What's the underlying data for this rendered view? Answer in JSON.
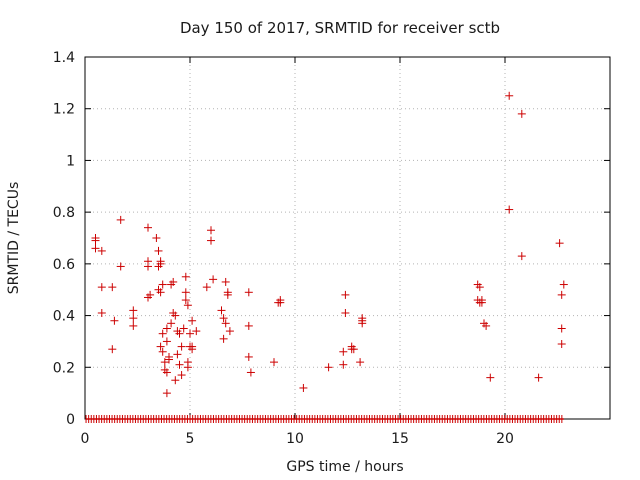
{
  "chart_data": {
    "type": "scatter",
    "title": "Day 150 of 2017, SRMTID for receiver sctb",
    "xlabel": "GPS time / hours",
    "ylabel": "SRMTID / TECUs",
    "xlim": [
      0,
      25
    ],
    "ylim": [
      0,
      1.4
    ],
    "xticks": [
      0,
      5,
      10,
      15,
      20
    ],
    "xtick_labels": [
      "0",
      "5",
      "10",
      "15",
      "20"
    ],
    "yticks": [
      0,
      0.2,
      0.4,
      0.6,
      0.8,
      1.0,
      1.2,
      1.4
    ],
    "ytick_labels": [
      "0",
      "0.2",
      "0.4",
      "0.6",
      "0.8",
      "1",
      "1.2",
      "1.4"
    ],
    "grid": true,
    "marker": "plus",
    "color": "#cc0000",
    "zero_band": {
      "x_start": 0.05,
      "x_end": 22.8,
      "y": 0
    },
    "series": [
      {
        "name": "SRMTID",
        "points": [
          [
            0.5,
            0.7
          ],
          [
            0.5,
            0.69
          ],
          [
            0.5,
            0.66
          ],
          [
            0.8,
            0.65
          ],
          [
            0.8,
            0.51
          ],
          [
            0.8,
            0.41
          ],
          [
            1.3,
            0.51
          ],
          [
            1.4,
            0.38
          ],
          [
            1.3,
            0.27
          ],
          [
            1.7,
            0.77
          ],
          [
            1.7,
            0.59
          ],
          [
            2.3,
            0.42
          ],
          [
            2.3,
            0.39
          ],
          [
            2.3,
            0.36
          ],
          [
            3.0,
            0.74
          ],
          [
            3.0,
            0.61
          ],
          [
            3.0,
            0.59
          ],
          [
            3.1,
            0.48
          ],
          [
            3.0,
            0.47
          ],
          [
            3.4,
            0.7
          ],
          [
            3.5,
            0.65
          ],
          [
            3.5,
            0.59
          ],
          [
            3.6,
            0.6
          ],
          [
            3.6,
            0.61
          ],
          [
            3.5,
            0.5
          ],
          [
            3.6,
            0.49
          ],
          [
            3.7,
            0.52
          ],
          [
            3.7,
            0.33
          ],
          [
            3.6,
            0.28
          ],
          [
            3.7,
            0.26
          ],
          [
            3.8,
            0.22
          ],
          [
            3.8,
            0.19
          ],
          [
            3.9,
            0.18
          ],
          [
            3.9,
            0.3
          ],
          [
            3.9,
            0.35
          ],
          [
            3.9,
            0.1
          ],
          [
            4.0,
            0.24
          ],
          [
            4.0,
            0.23
          ],
          [
            4.1,
            0.37
          ],
          [
            4.1,
            0.52
          ],
          [
            4.2,
            0.53
          ],
          [
            4.2,
            0.41
          ],
          [
            4.3,
            0.4
          ],
          [
            4.3,
            0.15
          ],
          [
            4.4,
            0.25
          ],
          [
            4.4,
            0.34
          ],
          [
            4.5,
            0.33
          ],
          [
            4.5,
            0.21
          ],
          [
            4.6,
            0.28
          ],
          [
            4.6,
            0.17
          ],
          [
            4.7,
            0.35
          ],
          [
            4.8,
            0.55
          ],
          [
            4.8,
            0.49
          ],
          [
            4.8,
            0.46
          ],
          [
            4.9,
            0.44
          ],
          [
            4.9,
            0.2
          ],
          [
            4.9,
            0.22
          ],
          [
            5.0,
            0.33
          ],
          [
            5.0,
            0.28
          ],
          [
            5.1,
            0.28
          ],
          [
            5.1,
            0.27
          ],
          [
            5.1,
            0.38
          ],
          [
            5.3,
            0.34
          ],
          [
            5.8,
            0.51
          ],
          [
            6.0,
            0.73
          ],
          [
            6.0,
            0.69
          ],
          [
            6.1,
            0.54
          ],
          [
            6.5,
            0.42
          ],
          [
            6.6,
            0.39
          ],
          [
            6.6,
            0.31
          ],
          [
            6.7,
            0.37
          ],
          [
            6.7,
            0.53
          ],
          [
            6.8,
            0.49
          ],
          [
            6.8,
            0.48
          ],
          [
            6.9,
            0.34
          ],
          [
            7.8,
            0.49
          ],
          [
            7.8,
            0.36
          ],
          [
            7.8,
            0.24
          ],
          [
            7.9,
            0.18
          ],
          [
            9.0,
            0.22
          ],
          [
            9.2,
            0.45
          ],
          [
            9.3,
            0.46
          ],
          [
            9.3,
            0.45
          ],
          [
            10.4,
            0.12
          ],
          [
            11.6,
            0.2
          ],
          [
            12.3,
            0.26
          ],
          [
            12.3,
            0.21
          ],
          [
            12.4,
            0.48
          ],
          [
            12.4,
            0.41
          ],
          [
            12.7,
            0.28
          ],
          [
            12.7,
            0.27
          ],
          [
            12.8,
            0.27
          ],
          [
            13.1,
            0.22
          ],
          [
            13.2,
            0.37
          ],
          [
            13.2,
            0.38
          ],
          [
            13.2,
            0.39
          ],
          [
            18.7,
            0.52
          ],
          [
            18.8,
            0.51
          ],
          [
            18.7,
            0.46
          ],
          [
            18.8,
            0.45
          ],
          [
            18.9,
            0.46
          ],
          [
            18.9,
            0.45
          ],
          [
            19.0,
            0.37
          ],
          [
            19.1,
            0.36
          ],
          [
            19.3,
            0.16
          ],
          [
            20.2,
            1.25
          ],
          [
            20.2,
            0.81
          ],
          [
            20.8,
            1.18
          ],
          [
            20.8,
            0.63
          ],
          [
            21.6,
            0.16
          ],
          [
            22.6,
            0.68
          ],
          [
            22.7,
            0.48
          ],
          [
            22.7,
            0.35
          ],
          [
            22.7,
            0.29
          ],
          [
            22.8,
            0.52
          ]
        ]
      }
    ]
  }
}
